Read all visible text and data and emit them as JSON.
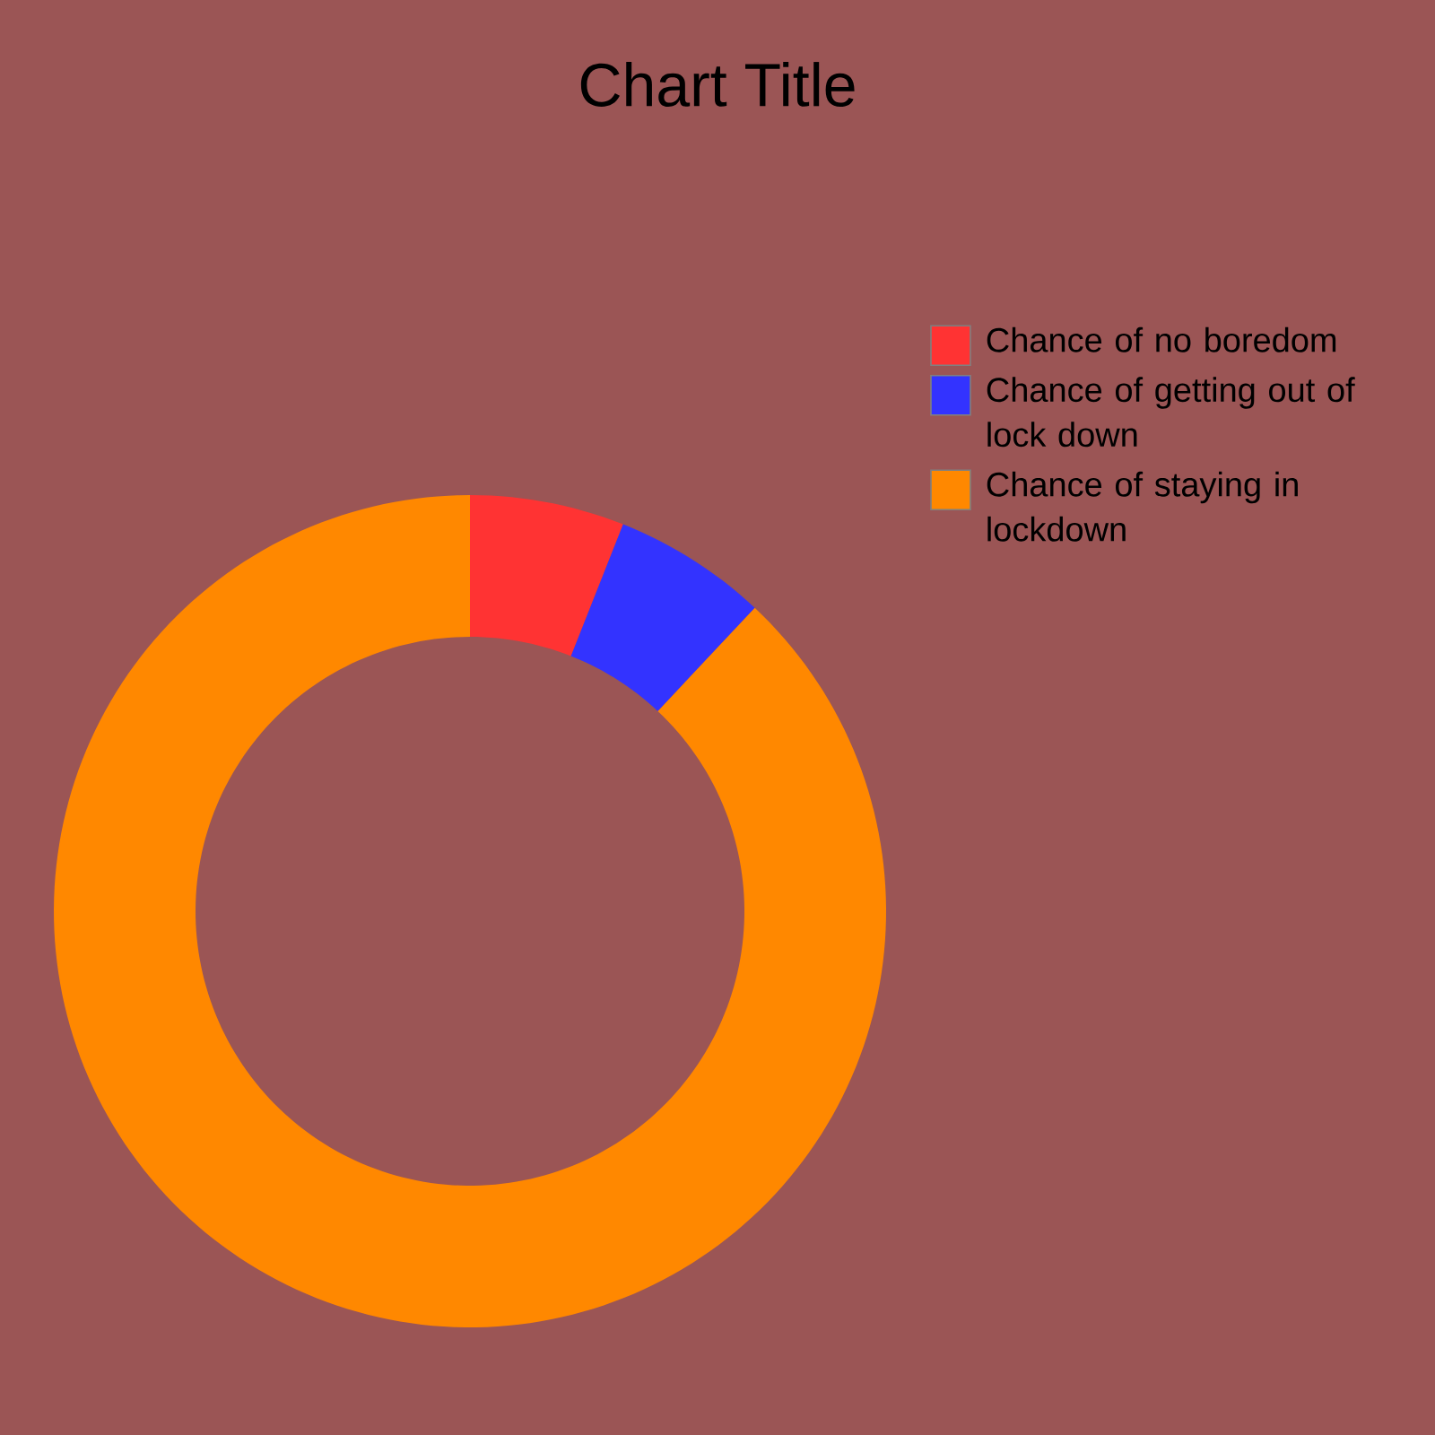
{
  "chart_data": {
    "type": "donut",
    "title": "Chart Title",
    "categories": [
      "Chance of no boredom",
      "Chance of getting out of lock down",
      "Chance of staying in lockdown"
    ],
    "values": [
      6,
      6,
      88
    ],
    "colors": [
      "#ff3333",
      "#3333ff",
      "#ff8800"
    ],
    "legend": "right"
  }
}
